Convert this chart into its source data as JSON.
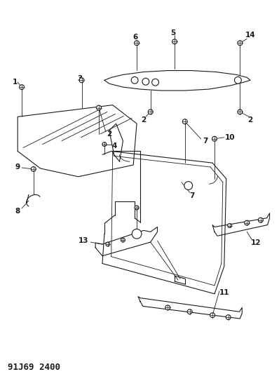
{
  "title": "91J69 2400",
  "bg_color": "#ffffff",
  "line_color": "#1a1a1a",
  "title_fontsize": 9,
  "label_fontsize": 7.5,
  "figsize": [
    3.98,
    5.33
  ],
  "dpi": 100
}
